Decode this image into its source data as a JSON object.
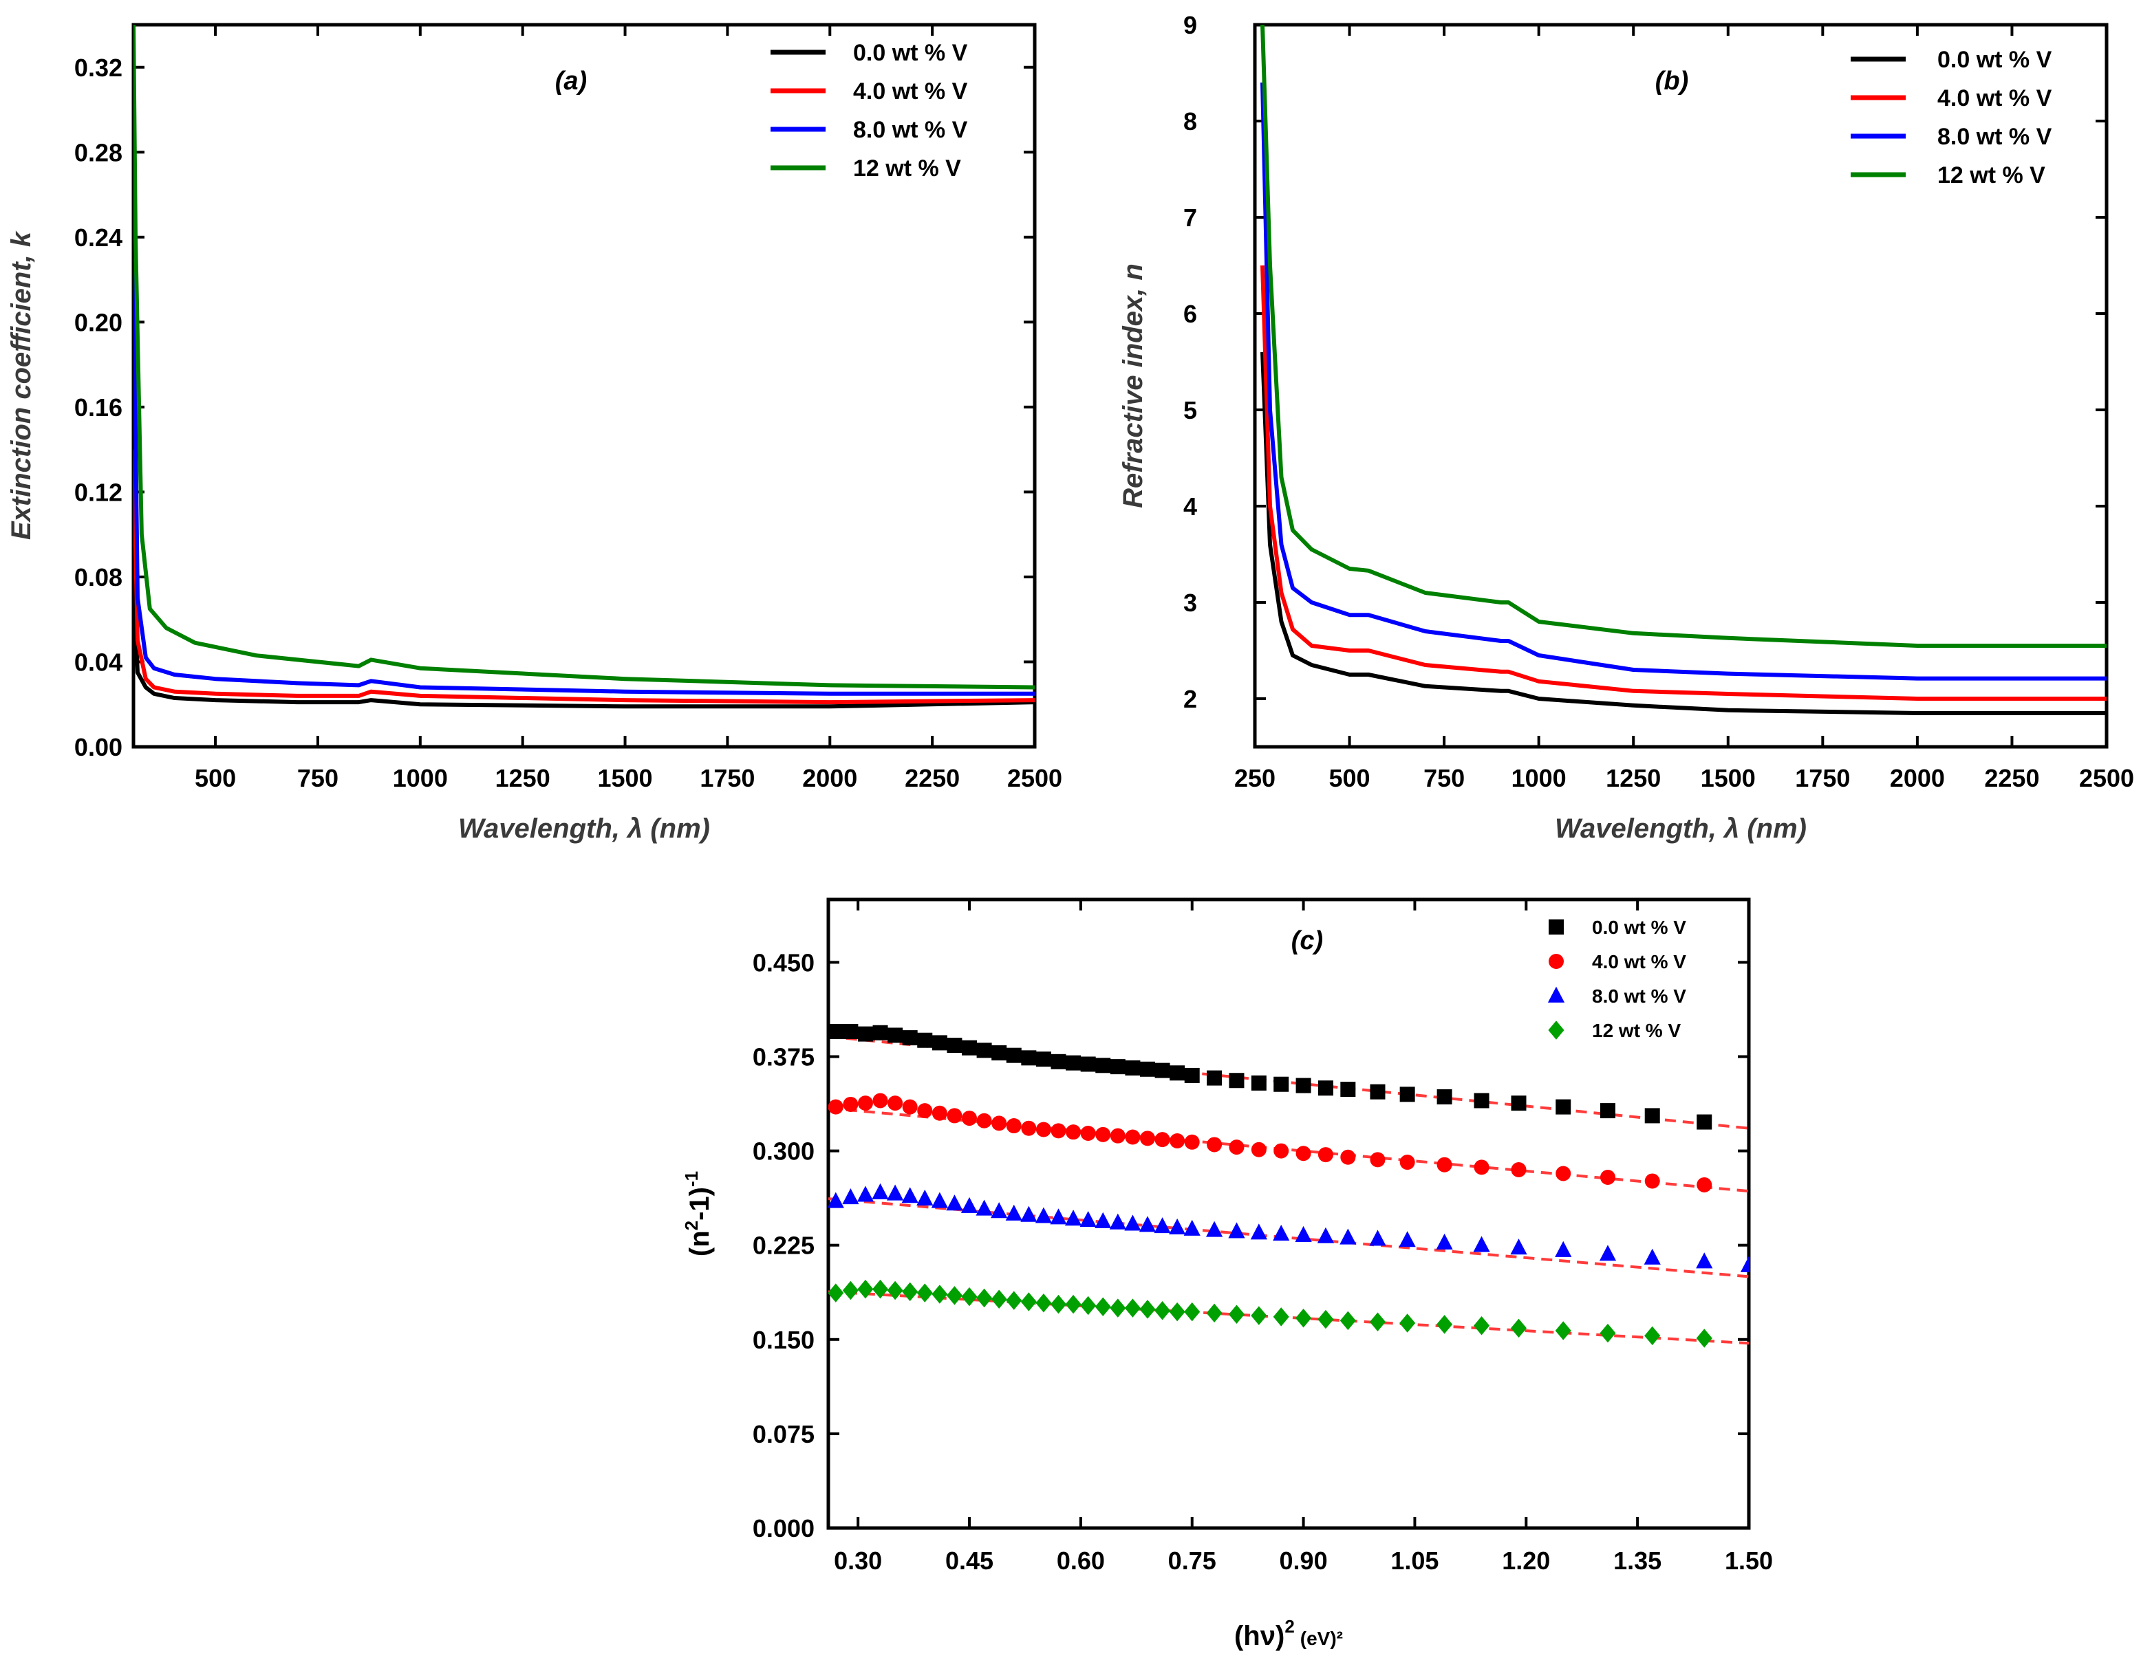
{
  "chart_data": [
    {
      "id": "a",
      "type": "line",
      "panel_label": "(a)",
      "xlabel": "Wavelength, λ (nm)",
      "ylabel": "Extinction coefficient, k",
      "xlim": [
        300,
        2500
      ],
      "ylim": [
        0,
        0.34
      ],
      "x_ticks": [
        500,
        750,
        1000,
        1250,
        1500,
        1750,
        2000,
        2250,
        2500
      ],
      "x_tick_labels": [
        "500",
        "750",
        "1000",
        "1250",
        "1500",
        "1750",
        "2000",
        "2250",
        "2500"
      ],
      "y_ticks": [
        0,
        0.04,
        0.08,
        0.12,
        0.16,
        0.2,
        0.24,
        0.28,
        0.32
      ],
      "y_tick_labels": [
        "0.00",
        "0.04",
        "0.08",
        "0.12",
        "0.16",
        "0.20",
        "0.24",
        "0.28",
        "0.32"
      ],
      "series": [
        {
          "name": "0.0 wt % V",
          "color": "#000000",
          "x": [
            300,
            310,
            330,
            350,
            400,
            500,
            700,
            850,
            880,
            1000,
            1500,
            2000,
            2500
          ],
          "y": [
            0.08,
            0.035,
            0.028,
            0.025,
            0.023,
            0.022,
            0.021,
            0.021,
            0.022,
            0.02,
            0.019,
            0.019,
            0.021
          ]
        },
        {
          "name": "4.0 wt % V",
          "color": "#ff0000",
          "x": [
            300,
            310,
            330,
            350,
            400,
            500,
            700,
            850,
            880,
            1000,
            1500,
            2000,
            2500
          ],
          "y": [
            0.14,
            0.05,
            0.032,
            0.028,
            0.026,
            0.025,
            0.024,
            0.024,
            0.026,
            0.024,
            0.022,
            0.021,
            0.022
          ]
        },
        {
          "name": "8.0 wt % V",
          "color": "#0000ff",
          "x": [
            300,
            310,
            330,
            350,
            400,
            500,
            700,
            850,
            880,
            1000,
            1500,
            2000,
            2500
          ],
          "y": [
            0.23,
            0.07,
            0.042,
            0.037,
            0.034,
            0.032,
            0.03,
            0.029,
            0.031,
            0.028,
            0.026,
            0.025,
            0.025
          ]
        },
        {
          "name": "12  wt % V",
          "color": "#008000",
          "x": [
            300,
            305,
            320,
            340,
            380,
            450,
            600,
            850,
            880,
            1000,
            1500,
            2000,
            2500
          ],
          "y": [
            0.34,
            0.24,
            0.1,
            0.065,
            0.056,
            0.049,
            0.043,
            0.038,
            0.041,
            0.037,
            0.032,
            0.029,
            0.028
          ]
        }
      ]
    },
    {
      "id": "b",
      "type": "line",
      "panel_label": "(b)",
      "xlabel": "Wavelength, λ (nm)",
      "ylabel": "Refractive index, n",
      "xlim": [
        250,
        2500
      ],
      "ylim": [
        1.5,
        9
      ],
      "x_ticks": [
        250,
        500,
        750,
        1000,
        1250,
        1500,
        1750,
        2000,
        2250,
        2500
      ],
      "x_tick_labels": [
        "250",
        "500",
        "750",
        "1000",
        "1250",
        "1500",
        "1750",
        "2000",
        "2250",
        "2500"
      ],
      "y_ticks": [
        2,
        3,
        4,
        5,
        6,
        7,
        8,
        9
      ],
      "y_tick_labels": [
        "2",
        "3",
        "4",
        "5",
        "6",
        "7",
        "8",
        "9"
      ],
      "series": [
        {
          "name": "0.0 wt % V",
          "color": "#000000",
          "x": [
            270,
            290,
            320,
            350,
            400,
            500,
            550,
            700,
            900,
            920,
            1000,
            1250,
            1500,
            2000,
            2500
          ],
          "y": [
            5.6,
            3.6,
            2.8,
            2.45,
            2.35,
            2.25,
            2.25,
            2.13,
            2.08,
            2.08,
            2.0,
            1.93,
            1.88,
            1.85,
            1.85
          ]
        },
        {
          "name": "4.0 wt % V",
          "color": "#ff0000",
          "x": [
            270,
            290,
            320,
            350,
            400,
            500,
            550,
            700,
            900,
            920,
            1000,
            1250,
            1500,
            2000,
            2500
          ],
          "y": [
            6.5,
            4.0,
            3.1,
            2.72,
            2.55,
            2.5,
            2.5,
            2.35,
            2.28,
            2.28,
            2.18,
            2.08,
            2.05,
            2.0,
            2.0
          ]
        },
        {
          "name": "8.0 wt % V",
          "color": "#0000ff",
          "x": [
            270,
            290,
            320,
            350,
            400,
            500,
            550,
            700,
            900,
            920,
            1000,
            1250,
            1500,
            2000,
            2500
          ],
          "y": [
            8.4,
            5.0,
            3.6,
            3.15,
            3.0,
            2.87,
            2.87,
            2.7,
            2.6,
            2.6,
            2.45,
            2.3,
            2.26,
            2.21,
            2.21
          ]
        },
        {
          "name": "12  wt % V",
          "color": "#008000",
          "x": [
            270,
            290,
            320,
            350,
            400,
            500,
            550,
            700,
            900,
            920,
            1000,
            1250,
            1500,
            2000,
            2500
          ],
          "y": [
            9.0,
            6.5,
            4.3,
            3.75,
            3.55,
            3.35,
            3.33,
            3.1,
            3.0,
            3.0,
            2.8,
            2.68,
            2.63,
            2.55,
            2.55
          ]
        }
      ]
    },
    {
      "id": "c",
      "type": "scatter",
      "panel_label": "(c)",
      "xlabel_main": "(hν)",
      "xlabel_exp": "2",
      "xlabel_unit": "(eV)²",
      "ylabel_main": "(n",
      "ylabel_exp": "2",
      "ylabel_mid": "-1)",
      "ylabel_exp2": "-1",
      "xlim": [
        0.26,
        1.5
      ],
      "ylim": [
        0,
        0.5
      ],
      "x_ticks": [
        0.3,
        0.45,
        0.6,
        0.75,
        0.9,
        1.05,
        1.2,
        1.35,
        1.5
      ],
      "x_tick_labels": [
        "0.30",
        "0.45",
        "0.60",
        "0.75",
        "0.90",
        "1.05",
        "1.20",
        "1.35",
        "1.50"
      ],
      "y_ticks": [
        0,
        0.075,
        0.15,
        0.225,
        0.3,
        0.375,
        0.45
      ],
      "y_tick_labels": [
        "0.000",
        "0.075",
        "0.150",
        "0.225",
        "0.300",
        "0.375",
        "0.450"
      ],
      "series": [
        {
          "name": "0.0 wt % V",
          "color": "#000000",
          "marker": "square",
          "x": [
            0.27,
            0.29,
            0.31,
            0.33,
            0.35,
            0.37,
            0.39,
            0.41,
            0.43,
            0.45,
            0.47,
            0.49,
            0.51,
            0.53,
            0.55,
            0.57,
            0.59,
            0.61,
            0.63,
            0.65,
            0.67,
            0.69,
            0.71,
            0.73,
            0.75,
            0.78,
            0.81,
            0.84,
            0.87,
            0.9,
            0.93,
            0.96,
            1.0,
            1.04,
            1.09,
            1.14,
            1.19,
            1.25,
            1.31,
            1.37,
            1.44
          ],
          "y": [
            0.395,
            0.395,
            0.393,
            0.394,
            0.392,
            0.39,
            0.388,
            0.386,
            0.384,
            0.382,
            0.38,
            0.378,
            0.376,
            0.374,
            0.373,
            0.371,
            0.37,
            0.369,
            0.368,
            0.367,
            0.366,
            0.365,
            0.364,
            0.362,
            0.36,
            0.358,
            0.356,
            0.354,
            0.353,
            0.352,
            0.35,
            0.349,
            0.347,
            0.345,
            0.343,
            0.34,
            0.338,
            0.335,
            0.332,
            0.328,
            0.323
          ],
          "fit": [
            0.391,
            0.318
          ]
        },
        {
          "name": "4.0 wt % V",
          "color": "#ff0000",
          "marker": "circle",
          "x": [
            0.27,
            0.29,
            0.31,
            0.33,
            0.35,
            0.37,
            0.39,
            0.41,
            0.43,
            0.45,
            0.47,
            0.49,
            0.51,
            0.53,
            0.55,
            0.57,
            0.59,
            0.61,
            0.63,
            0.65,
            0.67,
            0.69,
            0.71,
            0.73,
            0.75,
            0.78,
            0.81,
            0.84,
            0.87,
            0.9,
            0.93,
            0.96,
            1.0,
            1.04,
            1.09,
            1.14,
            1.19,
            1.25,
            1.31,
            1.37,
            1.44
          ],
          "y": [
            0.335,
            0.337,
            0.338,
            0.34,
            0.338,
            0.335,
            0.332,
            0.33,
            0.328,
            0.326,
            0.324,
            0.322,
            0.32,
            0.318,
            0.317,
            0.316,
            0.315,
            0.314,
            0.313,
            0.312,
            0.311,
            0.31,
            0.309,
            0.308,
            0.307,
            0.305,
            0.303,
            0.301,
            0.3,
            0.298,
            0.297,
            0.295,
            0.293,
            0.291,
            0.289,
            0.287,
            0.285,
            0.282,
            0.279,
            0.276,
            0.273
          ],
          "fit": [
            0.334,
            0.268
          ]
        },
        {
          "name": "8.0 wt % V",
          "color": "#0000ff",
          "marker": "triangle",
          "x": [
            0.27,
            0.29,
            0.31,
            0.33,
            0.35,
            0.37,
            0.39,
            0.41,
            0.43,
            0.45,
            0.47,
            0.49,
            0.51,
            0.53,
            0.55,
            0.57,
            0.59,
            0.61,
            0.63,
            0.65,
            0.67,
            0.69,
            0.71,
            0.73,
            0.75,
            0.78,
            0.81,
            0.84,
            0.87,
            0.9,
            0.93,
            0.96,
            1.0,
            1.04,
            1.09,
            1.14,
            1.19,
            1.25,
            1.31,
            1.37,
            1.44,
            1.5
          ],
          "y": [
            0.26,
            0.263,
            0.265,
            0.267,
            0.266,
            0.264,
            0.262,
            0.26,
            0.258,
            0.256,
            0.254,
            0.252,
            0.25,
            0.249,
            0.248,
            0.247,
            0.246,
            0.245,
            0.244,
            0.243,
            0.242,
            0.241,
            0.24,
            0.239,
            0.238,
            0.237,
            0.236,
            0.235,
            0.234,
            0.233,
            0.232,
            0.231,
            0.23,
            0.229,
            0.227,
            0.225,
            0.223,
            0.221,
            0.218,
            0.215,
            0.212,
            0.209
          ],
          "fit": [
            0.262,
            0.2
          ]
        },
        {
          "name": "12  wt % V",
          "color": "#00a000",
          "marker": "diamond",
          "x": [
            0.27,
            0.29,
            0.31,
            0.33,
            0.35,
            0.37,
            0.39,
            0.41,
            0.43,
            0.45,
            0.47,
            0.49,
            0.51,
            0.53,
            0.55,
            0.57,
            0.59,
            0.61,
            0.63,
            0.65,
            0.67,
            0.69,
            0.71,
            0.73,
            0.75,
            0.78,
            0.81,
            0.84,
            0.87,
            0.9,
            0.93,
            0.96,
            1.0,
            1.04,
            1.09,
            1.14,
            1.19,
            1.25,
            1.31,
            1.37,
            1.44
          ],
          "y": [
            0.187,
            0.189,
            0.19,
            0.19,
            0.189,
            0.188,
            0.187,
            0.186,
            0.185,
            0.184,
            0.183,
            0.182,
            0.181,
            0.18,
            0.179,
            0.178,
            0.178,
            0.177,
            0.176,
            0.175,
            0.175,
            0.174,
            0.173,
            0.172,
            0.172,
            0.171,
            0.17,
            0.169,
            0.168,
            0.167,
            0.166,
            0.165,
            0.164,
            0.163,
            0.162,
            0.161,
            0.159,
            0.157,
            0.155,
            0.153,
            0.151
          ],
          "fit": [
            0.188,
            0.147
          ]
        }
      ]
    }
  ]
}
